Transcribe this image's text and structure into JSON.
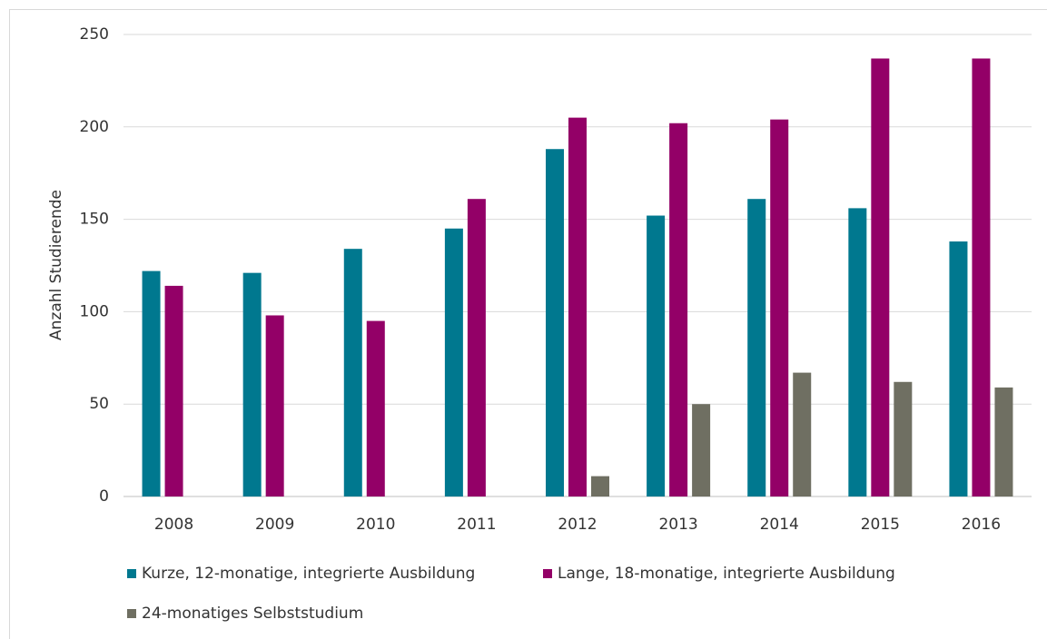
{
  "chart_data": {
    "type": "bar",
    "y_label": "Anzahl Studierende",
    "categories": [
      "2008",
      "2009",
      "2010",
      "2011",
      "2012",
      "2013",
      "2014",
      "2015",
      "2016"
    ],
    "series": [
      {
        "name": "Kurze, 12-monatige, integrierte Ausbildung",
        "color": "#00788f",
        "values": [
          122,
          121,
          134,
          145,
          188,
          152,
          161,
          156,
          138
        ]
      },
      {
        "name": "Lange, 18-monatige, integrierte Ausbildung",
        "color": "#930067",
        "values": [
          114,
          98,
          95,
          161,
          205,
          202,
          204,
          237,
          237
        ]
      },
      {
        "name": "24-monatiges Selbststudium",
        "color": "#6f6f62",
        "values": [
          null,
          null,
          null,
          null,
          11,
          50,
          67,
          62,
          59
        ]
      }
    ],
    "ylim": [
      0,
      250
    ],
    "yticks": [
      0,
      50,
      100,
      150,
      200,
      250
    ],
    "grid": true,
    "legend": "bottom"
  }
}
